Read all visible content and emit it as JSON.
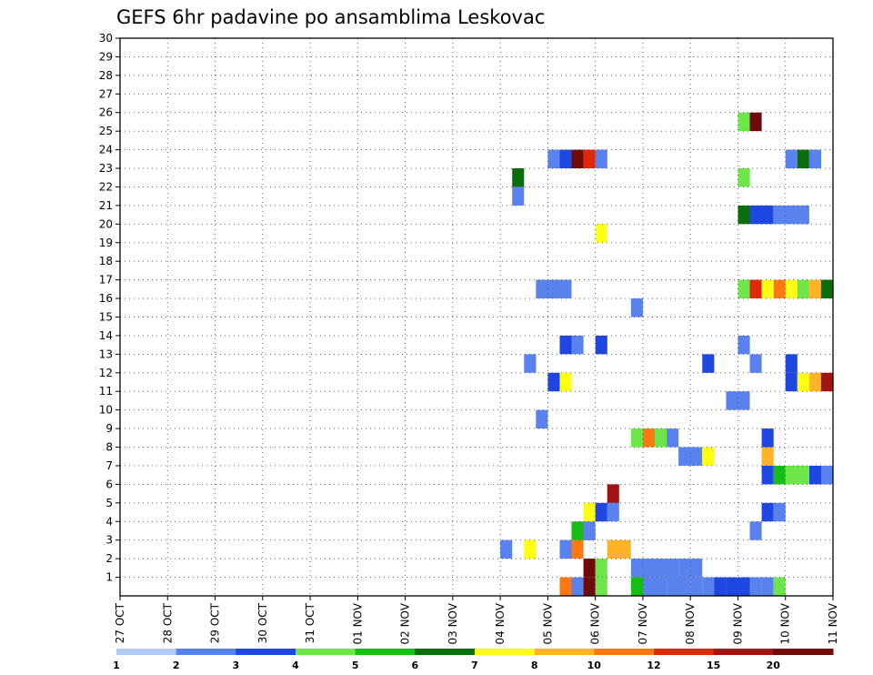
{
  "chart_data": {
    "type": "heatmap",
    "title": "GEFS 6hr padavine po ansamblima Leskovac",
    "xlabel": "",
    "ylabel": "",
    "x_tick_labels": [
      "27 OCT",
      "28 OCT",
      "29 OCT",
      "30 OCT",
      "31 OCT",
      "01 NOV",
      "02 NOV",
      "03 NOV",
      "04 NOV",
      "05 NOV",
      "06 NOV",
      "07 NOV",
      "08 NOV",
      "09 NOV",
      "10 NOV",
      "11 NOV"
    ],
    "x_range_days": [
      0,
      15
    ],
    "y_tick_labels": [
      "1",
      "2",
      "3",
      "4",
      "5",
      "6",
      "7",
      "8",
      "9",
      "10",
      "11",
      "12",
      "13",
      "14",
      "15",
      "16",
      "17",
      "18",
      "19",
      "20",
      "21",
      "22",
      "23",
      "24",
      "25",
      "26",
      "27",
      "28",
      "29",
      "30"
    ],
    "y_range": [
      0,
      30
    ],
    "grid": true,
    "colorbar": {
      "placement": "bottom",
      "tick_labels": [
        "1",
        "2",
        "3",
        "4",
        "5",
        "6",
        "7",
        "8",
        "10",
        "12",
        "15",
        "20"
      ],
      "colors": [
        "#b4c8f5",
        "#5a82ee",
        "#1e46e0",
        "#6ee64a",
        "#14be14",
        "#0a6e0a",
        "#ffff14",
        "#ffb428",
        "#ff7814",
        "#e1280a",
        "#a01414",
        "#6e0a0a"
      ]
    },
    "cells": [
      {
        "m": 0,
        "t": 0.25,
        "len": 0.25,
        "c": 8
      },
      {
        "m": 0,
        "t": 0.5,
        "len": 0.25,
        "c": 1
      },
      {
        "m": 0,
        "t": 0.75,
        "len": 0.25,
        "c": 11
      },
      {
        "m": 0,
        "t": 1.0,
        "len": 0.25,
        "c": 3
      },
      {
        "m": 0,
        "t": 1.75,
        "len": 0.25,
        "c": 4
      },
      {
        "m": 0,
        "t": 2.0,
        "len": 0.5,
        "c": 1
      },
      {
        "m": 0,
        "t": 2.5,
        "len": 0.5,
        "c": 1
      },
      {
        "m": 0,
        "t": 3.0,
        "len": 0.25,
        "c": 1
      },
      {
        "m": 0,
        "t": 3.25,
        "len": 0.25,
        "c": 1
      },
      {
        "m": 0,
        "t": 3.5,
        "len": 0.25,
        "c": 2
      },
      {
        "m": 0,
        "t": 3.75,
        "len": 0.5,
        "c": 2
      },
      {
        "m": 0,
        "t": 4.25,
        "len": 0.25,
        "c": 1
      },
      {
        "m": 0,
        "t": 4.5,
        "len": 0.25,
        "c": 1
      },
      {
        "m": 0,
        "t": 4.75,
        "len": 0.25,
        "c": 3
      },
      {
        "m": 1,
        "t": 0.75,
        "len": 0.25,
        "c": 11
      },
      {
        "m": 1,
        "t": 1.0,
        "len": 0.25,
        "c": 3
      },
      {
        "m": 1,
        "t": 1.75,
        "len": 0.5,
        "c": 1
      },
      {
        "m": 1,
        "t": 2.25,
        "len": 0.5,
        "c": 1
      },
      {
        "m": 1,
        "t": 2.75,
        "len": 0.5,
        "c": 1
      },
      {
        "m": 2,
        "t": -0.5,
        "len": 0.25,
        "c": 6
      },
      {
        "m": 2,
        "t": 0.25,
        "len": 0.25,
        "c": 1
      },
      {
        "m": 2,
        "t": 0.5,
        "len": 0.25,
        "c": 8
      },
      {
        "m": 2,
        "t": 1.25,
        "len": 0.5,
        "c": 7
      },
      {
        "m": 2,
        "t": -1.0,
        "len": 0.25,
        "c": 1
      },
      {
        "m": 3,
        "t": 0.5,
        "len": 0.5,
        "c": 4
      },
      {
        "m": 3,
        "t": 0.75,
        "len": 0.25,
        "c": 1
      },
      {
        "m": 3,
        "t": 4.25,
        "len": 0.25,
        "c": 1
      },
      {
        "m": 4,
        "t": 0.75,
        "len": 0.25,
        "c": 6
      },
      {
        "m": 4,
        "t": 1.0,
        "len": 0.25,
        "c": 2
      },
      {
        "m": 4,
        "t": 1.25,
        "len": 0.25,
        "c": 1
      },
      {
        "m": 4,
        "t": 4.5,
        "len": 0.25,
        "c": 2
      },
      {
        "m": 4,
        "t": 4.75,
        "len": 0.25,
        "c": 1
      },
      {
        "m": 5,
        "t": 1.25,
        "len": 0.25,
        "c": 10
      },
      {
        "m": 6,
        "t": 4.5,
        "len": 0.25,
        "c": 2
      },
      {
        "m": 6,
        "t": 4.75,
        "len": 0.25,
        "c": 4
      },
      {
        "m": 6,
        "t": 5.0,
        "len": 0.5,
        "c": 3
      },
      {
        "m": 6,
        "t": 5.5,
        "len": 0.25,
        "c": 2
      },
      {
        "m": 6,
        "t": 5.75,
        "len": 0.25,
        "c": 1
      },
      {
        "m": 7,
        "t": 2.75,
        "len": 0.5,
        "c": 1
      },
      {
        "m": 7,
        "t": 3.25,
        "len": 0.25,
        "c": 6
      },
      {
        "m": 7,
        "t": 4.5,
        "len": 0.25,
        "c": 7
      },
      {
        "m": 8,
        "t": 1.75,
        "len": 0.25,
        "c": 3
      },
      {
        "m": 8,
        "t": 2.0,
        "len": 0.25,
        "c": 8
      },
      {
        "m": 8,
        "t": 2.25,
        "len": 0.25,
        "c": 3
      },
      {
        "m": 8,
        "t": 2.5,
        "len": 0.25,
        "c": 1
      },
      {
        "m": 8,
        "t": 4.5,
        "len": 0.25,
        "c": 2
      },
      {
        "m": 9,
        "t": -0.25,
        "len": 0.25,
        "c": 1
      },
      {
        "m": 10,
        "t": 3.75,
        "len": 0.5,
        "c": 1
      },
      {
        "m": 11,
        "t": 0.0,
        "len": 0.25,
        "c": 2
      },
      {
        "m": 11,
        "t": 0.25,
        "len": 0.25,
        "c": 6
      },
      {
        "m": 11,
        "t": 5.0,
        "len": 0.25,
        "c": 2
      },
      {
        "m": 11,
        "t": 5.25,
        "len": 0.25,
        "c": 6
      },
      {
        "m": 11,
        "t": 5.5,
        "len": 0.25,
        "c": 7
      },
      {
        "m": 11,
        "t": 5.75,
        "len": 0.25,
        "c": 10
      },
      {
        "m": 12,
        "t": -0.5,
        "len": 0.25,
        "c": 1
      },
      {
        "m": 12,
        "t": 3.25,
        "len": 0.25,
        "c": 2
      },
      {
        "m": 12,
        "t": 4.25,
        "len": 0.25,
        "c": 1
      },
      {
        "m": 12,
        "t": 5.0,
        "len": 0.25,
        "c": 2
      },
      {
        "m": 13,
        "t": 0.25,
        "len": 0.25,
        "c": 2
      },
      {
        "m": 13,
        "t": 0.5,
        "len": 0.25,
        "c": 1
      },
      {
        "m": 13,
        "t": 1.0,
        "len": 0.25,
        "c": 2
      },
      {
        "m": 13,
        "t": 4.0,
        "len": 0.25,
        "c": 1
      },
      {
        "m": 15,
        "t": 1.75,
        "len": 0.25,
        "c": 1
      },
      {
        "m": 16,
        "t": -0.25,
        "len": 0.75,
        "c": 1
      },
      {
        "m": 16,
        "t": 4.0,
        "len": 0.25,
        "c": 3
      },
      {
        "m": 16,
        "t": 4.25,
        "len": 0.25,
        "c": 9
      },
      {
        "m": 16,
        "t": 4.5,
        "len": 0.25,
        "c": 6
      },
      {
        "m": 16,
        "t": 4.75,
        "len": 0.25,
        "c": 8
      },
      {
        "m": 16,
        "t": 5.0,
        "len": 0.25,
        "c": 6
      },
      {
        "m": 16,
        "t": 5.25,
        "len": 0.25,
        "c": 3
      },
      {
        "m": 16,
        "t": 5.5,
        "len": 0.25,
        "c": 7
      },
      {
        "m": 16,
        "t": 5.75,
        "len": 0.25,
        "c": 5
      },
      {
        "m": 19,
        "t": 1.0,
        "len": 0.25,
        "c": 6
      },
      {
        "m": 20,
        "t": 4.0,
        "len": 0.25,
        "c": 5
      },
      {
        "m": 20,
        "t": 4.25,
        "len": 0.5,
        "c": 2
      },
      {
        "m": 20,
        "t": 4.75,
        "len": 0.75,
        "c": 1
      },
      {
        "m": 21,
        "t": -0.75,
        "len": 0.25,
        "c": 1
      },
      {
        "m": 22,
        "t": -0.75,
        "len": 0.25,
        "c": 5
      },
      {
        "m": 22,
        "t": 4.0,
        "len": 0.25,
        "c": 3
      },
      {
        "m": 23,
        "t": 0.0,
        "len": 0.25,
        "c": 1
      },
      {
        "m": 23,
        "t": 0.25,
        "len": 0.25,
        "c": 2
      },
      {
        "m": 23,
        "t": 0.5,
        "len": 0.25,
        "c": 11
      },
      {
        "m": 23,
        "t": 0.75,
        "len": 0.25,
        "c": 9
      },
      {
        "m": 23,
        "t": 1.0,
        "len": 0.25,
        "c": 1
      },
      {
        "m": 23,
        "t": 5.0,
        "len": 0.25,
        "c": 1
      },
      {
        "m": 23,
        "t": 5.25,
        "len": 0.25,
        "c": 5
      },
      {
        "m": 23,
        "t": 5.5,
        "len": 0.25,
        "c": 1
      },
      {
        "m": 25,
        "t": 4.0,
        "len": 0.25,
        "c": 3
      },
      {
        "m": 25,
        "t": 4.25,
        "len": 0.25,
        "c": 11
      }
    ]
  }
}
